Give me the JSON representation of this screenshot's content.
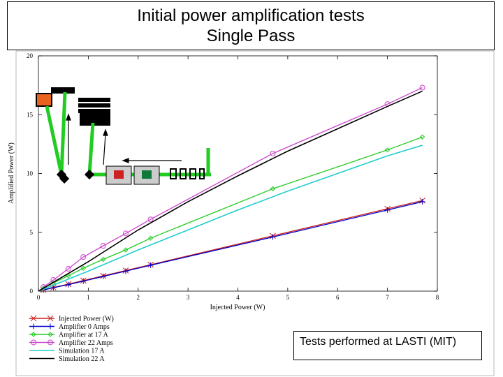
{
  "title": {
    "line1": "Initial power amplification tests",
    "line2": "Single Pass"
  },
  "caption": "Tests performed at LASTI (MIT)",
  "chart_data": {
    "type": "line",
    "xlabel": "Injected Power (W)",
    "ylabel": "Amplified Power (W)",
    "xlim": [
      0,
      8
    ],
    "ylim": [
      0,
      20
    ],
    "xticks": [
      "0",
      "1",
      "2",
      "3",
      "4",
      "5",
      "6",
      "7",
      "8"
    ],
    "yticks": [
      "0",
      "5",
      "10",
      "15",
      "20"
    ],
    "grid": false,
    "legend_position": "bottom-left",
    "series": [
      {
        "name": "Injected Power (W)",
        "color": "#cc2222",
        "marker": "x",
        "x": [
          0.1,
          0.3,
          0.6,
          0.9,
          1.3,
          1.75,
          2.25,
          4.7,
          7.0,
          7.7
        ],
        "y": [
          0.1,
          0.3,
          0.6,
          0.9,
          1.3,
          1.75,
          2.25,
          4.7,
          7.0,
          7.7
        ]
      },
      {
        "name": "Amplifier 0 Amps",
        "color": "#0000cc",
        "marker": "plus",
        "x": [
          0.1,
          0.3,
          0.6,
          0.9,
          1.3,
          1.75,
          2.25,
          4.7,
          7.0,
          7.7
        ],
        "y": [
          0.1,
          0.3,
          0.55,
          0.85,
          1.25,
          1.7,
          2.2,
          4.6,
          6.9,
          7.6
        ]
      },
      {
        "name": "Amplifier at 17 A",
        "color": "#22cc22",
        "marker": "diamond",
        "x": [
          0.1,
          0.3,
          0.6,
          0.9,
          1.3,
          1.75,
          2.25,
          4.7,
          7.0,
          7.7
        ],
        "y": [
          0.25,
          0.7,
          1.3,
          1.95,
          2.7,
          3.5,
          4.5,
          8.7,
          12.0,
          13.1
        ]
      },
      {
        "name": "Amplifier 22 Amps",
        "color": "#cc44cc",
        "marker": "circle",
        "x": [
          0.1,
          0.3,
          0.6,
          0.9,
          1.3,
          1.75,
          2.25,
          4.7,
          7.0,
          7.7
        ],
        "y": [
          0.35,
          0.95,
          1.9,
          2.9,
          3.85,
          4.9,
          6.1,
          11.7,
          15.9,
          17.3
        ]
      },
      {
        "name": "Simulation 17 A",
        "color": "#22cccc",
        "marker": "none",
        "x": [
          0,
          1,
          2,
          3,
          4,
          5,
          6,
          7,
          7.7
        ],
        "y": [
          0,
          1.7,
          3.5,
          5.2,
          6.9,
          8.5,
          10.0,
          11.5,
          12.4
        ]
      },
      {
        "name": "Simulation 22 A",
        "color": "#000000",
        "marker": "none",
        "x": [
          0,
          1,
          2,
          3,
          4,
          5,
          6,
          7,
          7.7
        ],
        "y": [
          0,
          2.5,
          5.2,
          7.6,
          9.8,
          11.9,
          13.8,
          15.7,
          17.0
        ]
      }
    ]
  }
}
